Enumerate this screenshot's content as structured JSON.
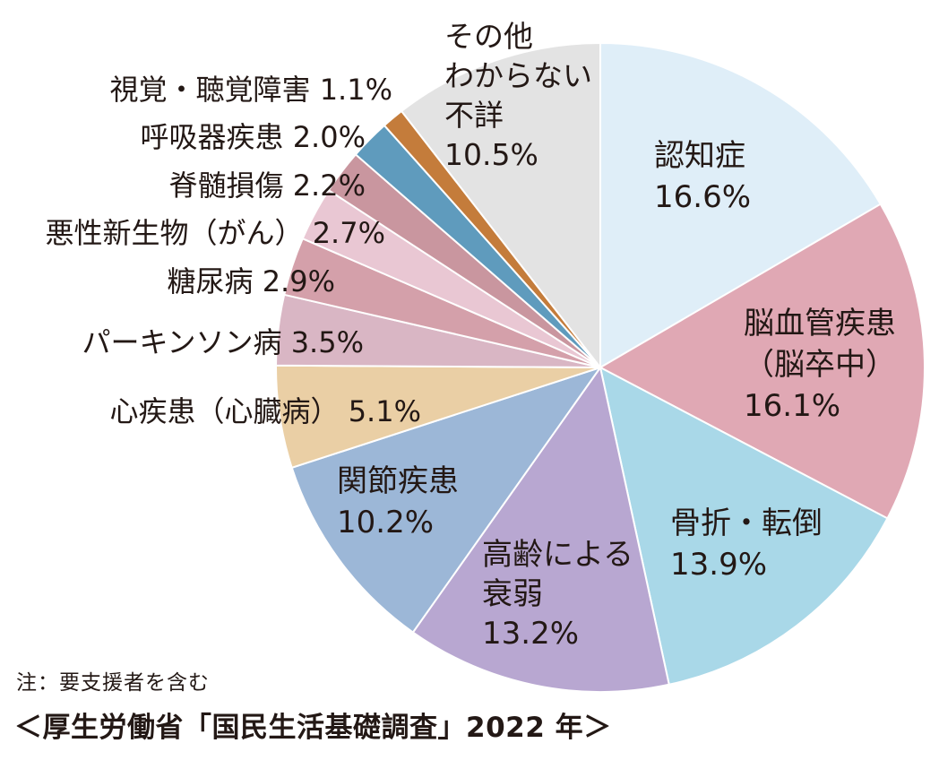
{
  "chart_data": {
    "type": "pie",
    "start": "12 o'clock",
    "direction": "clockwise",
    "slices": [
      {
        "label": [
          "認知症"
        ],
        "value": 16.6,
        "value_label": "16.6%",
        "color": "#dfeef8"
      },
      {
        "label": [
          "脳血管疾患",
          "（脳卒中）"
        ],
        "value": 16.1,
        "value_label": "16.1%",
        "color": "#e0a8b4"
      },
      {
        "label": [
          "骨折・転倒"
        ],
        "value": 13.9,
        "value_label": "13.9%",
        "color": "#a9d8e8"
      },
      {
        "label": [
          "高齢による",
          "衰弱"
        ],
        "value": 13.2,
        "value_label": "13.2%",
        "color": "#b8a7d1"
      },
      {
        "label": [
          "関節疾患"
        ],
        "value": 10.2,
        "value_label": "10.2%",
        "color": "#9cb7d7"
      },
      {
        "label": [
          "心疾患（心臓病）"
        ],
        "value": 5.1,
        "value_label": "5.1%",
        "color": "#eacfa5"
      },
      {
        "label": [
          "パーキンソン病"
        ],
        "value": 3.5,
        "value_label": "3.5%",
        "color": "#d9b6c4"
      },
      {
        "label": [
          "糖尿病"
        ],
        "value": 2.9,
        "value_label": "2.9%",
        "color": "#d4a0aa"
      },
      {
        "label": [
          "悪性新生物（がん）"
        ],
        "value": 2.7,
        "value_label": "2.7%",
        "color": "#e9c7d3"
      },
      {
        "label": [
          "脊髄損傷"
        ],
        "value": 2.2,
        "value_label": "2.2%",
        "color": "#c9969f"
      },
      {
        "label": [
          "呼吸器疾患"
        ],
        "value": 2.0,
        "value_label": "2.0%",
        "color": "#5f9bbd"
      },
      {
        "label": [
          "視覚・聴覚障害"
        ],
        "value": 1.1,
        "value_label": "1.1%",
        "color": "#c47c3b"
      },
      {
        "label": [
          "その他",
          "わからない",
          "不詳"
        ],
        "value": 10.5,
        "value_label": "10.5%",
        "color": "#e3e3e3"
      }
    ]
  },
  "footer": {
    "note": "注：要支援者を含む",
    "source": "＜厚生労働省「国民生活基礎調査」2022 年＞"
  }
}
